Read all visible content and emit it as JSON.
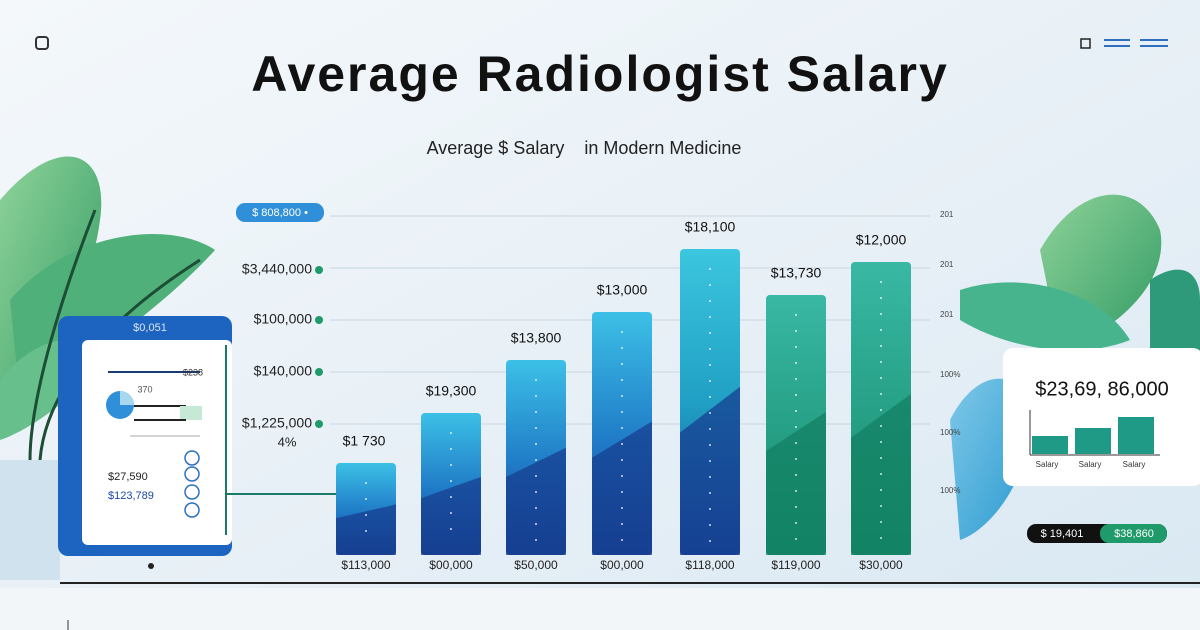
{
  "header": {
    "title": "Average Radiologist Salary",
    "subtitle": "Average $ Salary    in Modern Medicine",
    "pill": "$ 808,800 •"
  },
  "y_labels": [
    "$3,440,000",
    "$100,000",
    "$140,000",
    "$1,225,000"
  ],
  "percent_label": "4%",
  "right_labels": [
    "201",
    "201",
    "201",
    "100%",
    "100%",
    "100%"
  ],
  "bars": [
    {
      "top_label": "$1 730",
      "bottom_label": "$113,000"
    },
    {
      "top_label": "$19,300",
      "bottom_label": "$00,000"
    },
    {
      "top_label": "$13,800",
      "bottom_label": "$50,000"
    },
    {
      "top_label": "$13,000",
      "bottom_label": "$00,000"
    },
    {
      "top_label": "$18,100",
      "bottom_label": "$118,000"
    },
    {
      "top_label": "$13,730",
      "bottom_label": "$119,000"
    },
    {
      "top_label": "$12,000",
      "bottom_label": "$30,000"
    }
  ],
  "left_card": {
    "label": "$0,051",
    "header": "$238",
    "tag": "370",
    "line1": "$27,590",
    "line2": "$123,789"
  },
  "right_card": {
    "amount": "$23,69, 86,000",
    "labels": [
      "Salary",
      "Salary",
      "Salary"
    ]
  },
  "footer_pill": {
    "left": "$ 19,401",
    "right": "$38,860"
  }
}
